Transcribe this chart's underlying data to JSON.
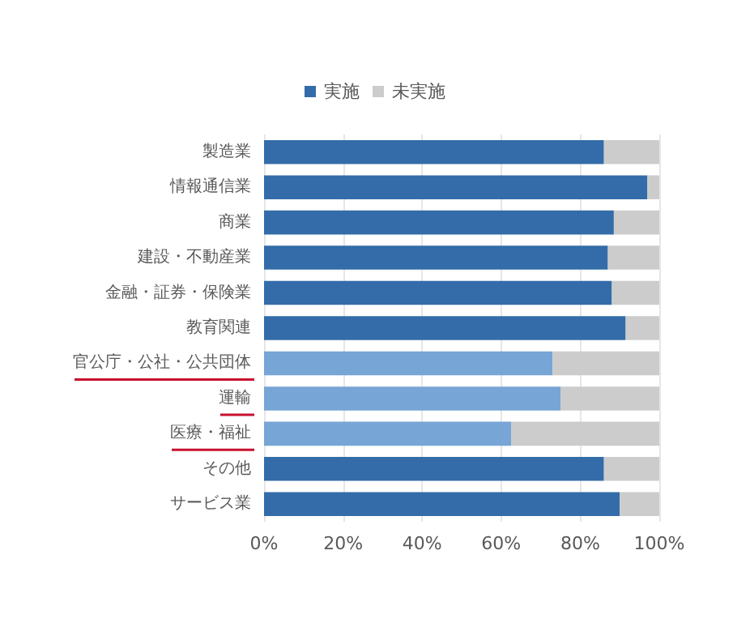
{
  "chart_data": {
    "type": "bar",
    "orientation": "horizontal",
    "stacked": true,
    "categories": [
      "製造業",
      "情報通信業",
      "商業",
      "建設・不動産業",
      "金融・証券・保険業",
      "教育関連",
      "官公庁・公社・公共団体",
      "運輸",
      "医療・福祉",
      "その他",
      "サービス業"
    ],
    "series": [
      {
        "name": "実施",
        "color": "#336ca8",
        "colors": [
          "#336ca8",
          "#336ca8",
          "#336ca8",
          "#336ca8",
          "#336ca8",
          "#336ca8",
          "#77a5d6",
          "#77a5d6",
          "#77a5d6",
          "#336ca8",
          "#336ca8"
        ],
        "values": [
          86,
          97,
          88.5,
          87,
          88,
          91.5,
          73,
          75,
          62.5,
          86,
          90
        ]
      },
      {
        "name": "未実施",
        "color": "#cccccc",
        "values": [
          14,
          3,
          11.5,
          13,
          12,
          8.5,
          27,
          25,
          37.5,
          14,
          10
        ]
      }
    ],
    "xlim": [
      0,
      100
    ],
    "xticks": [
      {
        "value": 0,
        "label": "0%"
      },
      {
        "value": 20,
        "label": "20%"
      },
      {
        "value": 40,
        "label": "40%"
      },
      {
        "value": 60,
        "label": "60%"
      },
      {
        "value": 80,
        "label": "80%"
      },
      {
        "value": 100,
        "label": "100%"
      }
    ],
    "grid": "x",
    "legend": "top"
  }
}
